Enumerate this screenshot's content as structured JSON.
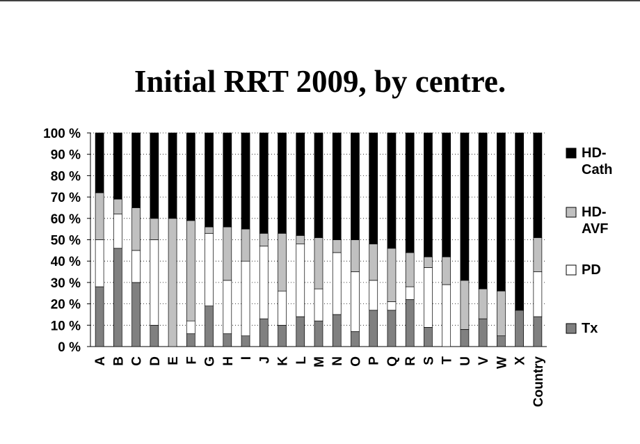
{
  "chart_data": {
    "type": "stacked_bar_100",
    "title": "Initial RRT 2009, by centre.",
    "categories": [
      "A",
      "B",
      "C",
      "D",
      "E",
      "F",
      "G",
      "H",
      "I",
      "J",
      "K",
      "L",
      "M",
      "N",
      "O",
      "P",
      "Q",
      "R",
      "S",
      "T",
      "U",
      "V",
      "W",
      "X",
      "Country"
    ],
    "series": [
      {
        "name": "Tx",
        "color": "#808080",
        "values": [
          28,
          46,
          30,
          10,
          0,
          6,
          19,
          6,
          5,
          13,
          10,
          14,
          12,
          15,
          7,
          17,
          17,
          22,
          9,
          0,
          8,
          13,
          5,
          17,
          14
        ]
      },
      {
        "name": "PD",
        "color": "#ffffff",
        "values": [
          22,
          16,
          15,
          40,
          0,
          6,
          34,
          25,
          35,
          34,
          16,
          34,
          15,
          29,
          28,
          14,
          4,
          6,
          28,
          29,
          0,
          0,
          0,
          0,
          21
        ]
      },
      {
        "name": "HD-AVF",
        "color": "#c0c0c0",
        "values": [
          22,
          7,
          20,
          10,
          60,
          47,
          3,
          25,
          15,
          6,
          27,
          4,
          24,
          6,
          15,
          17,
          25,
          16,
          5,
          13,
          23,
          14,
          21,
          0,
          16
        ]
      },
      {
        "name": "HD-Cath",
        "color": "#000000",
        "values": [
          28,
          31,
          35,
          40,
          40,
          41,
          44,
          44,
          45,
          47,
          47,
          48,
          49,
          50,
          50,
          52,
          54,
          56,
          58,
          58,
          69,
          73,
          74,
          83,
          49
        ]
      }
    ],
    "ylim": [
      0,
      100
    ],
    "yticks": [
      {
        "value": 0,
        "label": "0 %"
      },
      {
        "value": 10,
        "label": "10 %"
      },
      {
        "value": 20,
        "label": "20 %"
      },
      {
        "value": 30,
        "label": "30 %"
      },
      {
        "value": 40,
        "label": "40 %"
      },
      {
        "value": 50,
        "label": "50 %"
      },
      {
        "value": 60,
        "label": "60 %"
      },
      {
        "value": 70,
        "label": "70 %"
      },
      {
        "value": 80,
        "label": "80 %"
      },
      {
        "value": 90,
        "label": "90 %"
      },
      {
        "value": 100,
        "label": "100 %"
      }
    ],
    "grid": true,
    "legend": "right"
  }
}
